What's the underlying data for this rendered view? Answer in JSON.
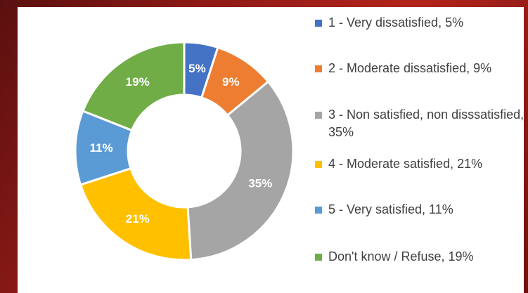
{
  "chart_data": {
    "type": "donut",
    "categories": [
      "1 - Very dissatisfied, 5%",
      "2 - Moderate dissatisfied, 9%",
      "3 - Non satisfied, non disssatisfied, 35%",
      "4 - Moderate satisfied, 21%",
      "5 - Very satisfied, 11%",
      "Don't know / Refuse, 19%"
    ],
    "values": [
      5,
      9,
      35,
      21,
      11,
      19
    ],
    "value_labels": [
      "5%",
      "9%",
      "35%",
      "21%",
      "11%",
      "19%"
    ],
    "colors": [
      "#4472c4",
      "#ed7d31",
      "#a5a5a5",
      "#ffc000",
      "#5b9bd5",
      "#70ad47"
    ],
    "legend": "right"
  }
}
